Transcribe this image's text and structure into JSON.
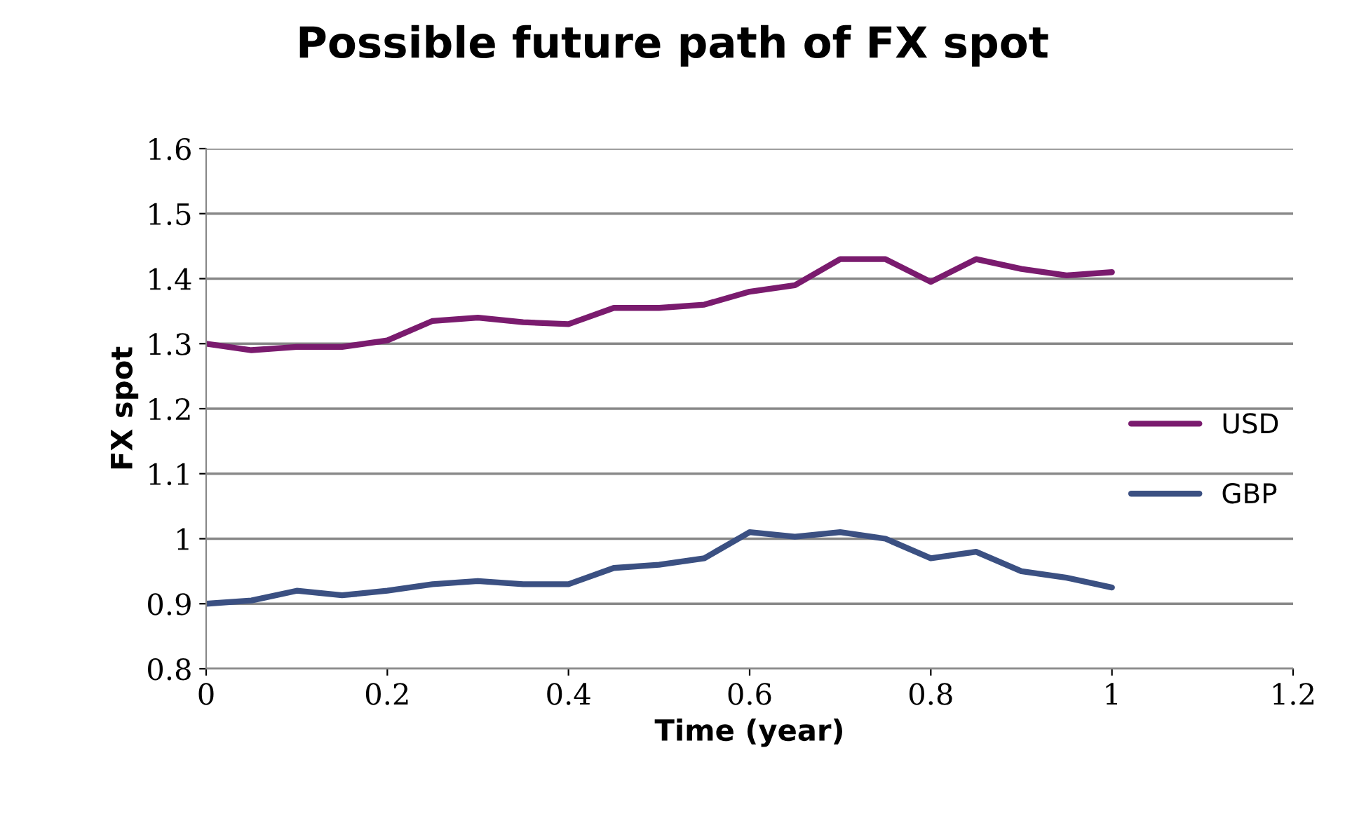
{
  "chart_data": {
    "type": "line",
    "title": "Possible future path of FX spot",
    "xlabel": "Time (year)",
    "ylabel": "FX spot",
    "x": [
      0,
      0.05,
      0.1,
      0.15,
      0.2,
      0.25,
      0.3,
      0.35,
      0.4,
      0.45,
      0.5,
      0.55,
      0.6,
      0.65,
      0.7,
      0.75,
      0.8,
      0.85,
      0.9,
      0.95,
      1
    ],
    "series": [
      {
        "name": "USD",
        "color": "#7a1b6e",
        "values": [
          1.3,
          1.29,
          1.295,
          1.295,
          1.305,
          1.335,
          1.34,
          1.333,
          1.33,
          1.355,
          1.355,
          1.36,
          1.38,
          1.39,
          1.43,
          1.43,
          1.395,
          1.43,
          1.415,
          1.405,
          1.41
        ]
      },
      {
        "name": "GBP",
        "color": "#3b5082",
        "values": [
          0.9,
          0.905,
          0.92,
          0.913,
          0.92,
          0.93,
          0.935,
          0.93,
          0.93,
          0.955,
          0.96,
          0.97,
          1.01,
          1.003,
          1.01,
          1.0,
          0.97,
          0.98,
          0.95,
          0.94,
          0.925
        ]
      }
    ],
    "xlim": [
      0,
      1.2
    ],
    "xticks": [
      0,
      0.2,
      0.4,
      0.6,
      0.8,
      1,
      1.2
    ],
    "ylim": [
      0.8,
      1.6
    ],
    "yticks": [
      0.8,
      0.9,
      1,
      1.1,
      1.2,
      1.3,
      1.4,
      1.5,
      1.6
    ],
    "grid": "y",
    "legend": "right",
    "marker": "none",
    "line_style": "solid"
  }
}
